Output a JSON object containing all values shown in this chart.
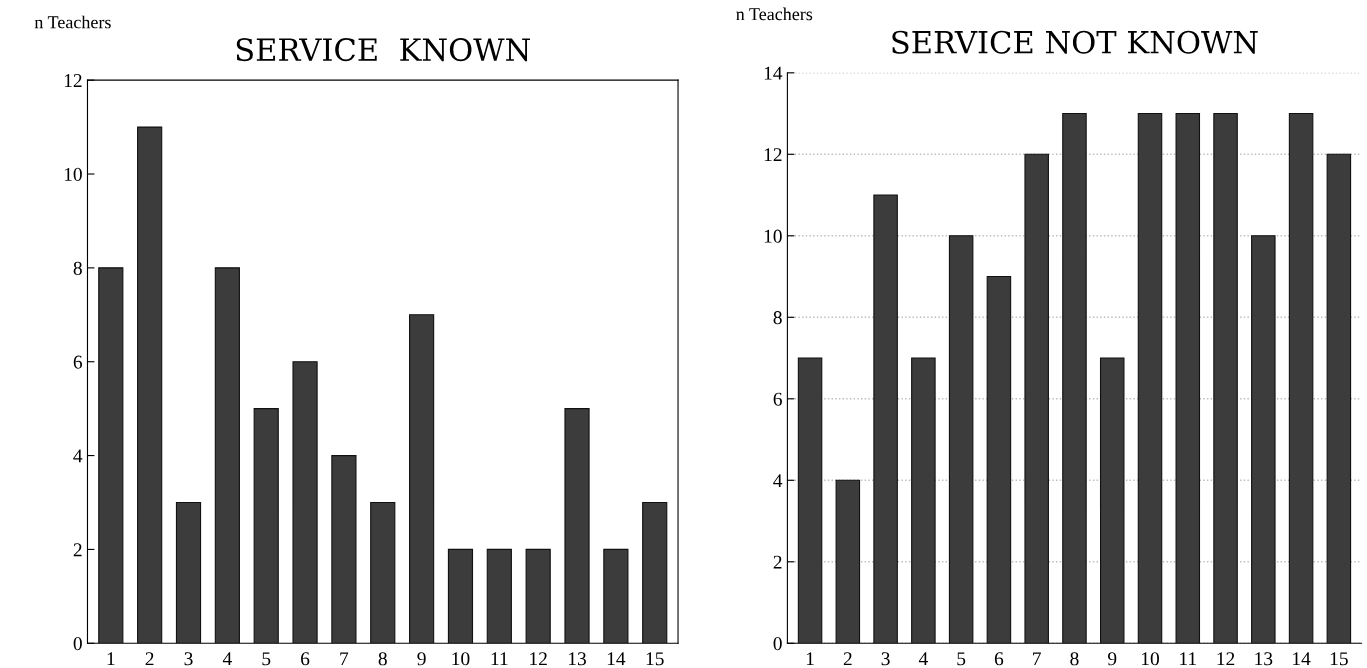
{
  "chart_data": [
    {
      "type": "bar",
      "title": "SERVICE  KNOWN",
      "ylabel": "n Teachers",
      "categories": [
        "1",
        "2",
        "3",
        "4",
        "5",
        "6",
        "7",
        "8",
        "9",
        "10",
        "11",
        "12",
        "13",
        "14",
        "15"
      ],
      "values": [
        8,
        11,
        3,
        8,
        5,
        6,
        4,
        3,
        7,
        2,
        2,
        2,
        5,
        2,
        3
      ],
      "color": "#3c3c3c",
      "ylim": [
        0,
        12
      ],
      "yticks": [
        0,
        2,
        4,
        6,
        8,
        10,
        12
      ],
      "grid": false
    },
    {
      "type": "bar",
      "title": "SERVICE NOT KNOWN",
      "ylabel": "n Teachers",
      "categories": [
        "1",
        "2",
        "3",
        "4",
        "5",
        "6",
        "7",
        "8",
        "9",
        "10",
        "11",
        "12",
        "13",
        "14",
        "15"
      ],
      "values": [
        7,
        4,
        11,
        7,
        10,
        9,
        12,
        13,
        7,
        13,
        13,
        13,
        10,
        13,
        12
      ],
      "color": "#3c3c3c",
      "ylim": [
        0,
        14
      ],
      "yticks": [
        0,
        2,
        4,
        6,
        8,
        10,
        12,
        14
      ],
      "grid": "y"
    }
  ]
}
